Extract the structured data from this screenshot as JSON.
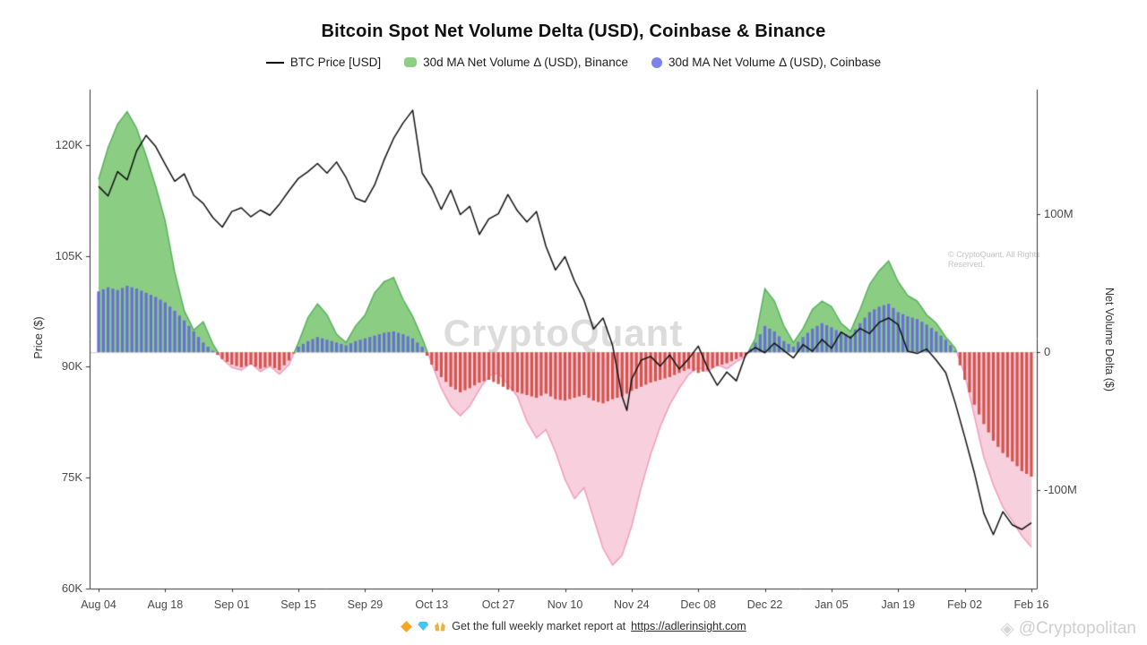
{
  "title": "Bitcoin Spot Net Volume Delta (USD), Coinbase & Binance",
  "legend": {
    "items": [
      {
        "label": "BTC Price [USD]",
        "swatch": "black-line"
      },
      {
        "label": "30d MA Net Volume Δ (USD), Binance",
        "swatch": "green-area"
      },
      {
        "label": "30d MA Net Volume Δ (USD), Coinbase",
        "swatch": "purple-dot"
      }
    ]
  },
  "axes": {
    "left_title": "Price ($)",
    "right_title": "Net Volume Delta ($)"
  },
  "watermarks": {
    "center": "CryptoQuant",
    "small": "© CryptoQuant. All Rights Reserved.",
    "bottom_right": "@Cryptopolitan"
  },
  "footer": {
    "icons": [
      "orange-diamond-icon",
      "gem-icon",
      "raised-hands-icon"
    ],
    "text": "Get the full weekly market report at",
    "link": "https://adlerinsight.com"
  },
  "chart_data": {
    "type": "line",
    "x_unit": "days from Aug 04",
    "x_ticks": [
      {
        "d": 0,
        "label": "Aug 04"
      },
      {
        "d": 14,
        "label": "Aug 18"
      },
      {
        "d": 28,
        "label": "Sep 01"
      },
      {
        "d": 42,
        "label": "Sep 15"
      },
      {
        "d": 56,
        "label": "Sep 29"
      },
      {
        "d": 70,
        "label": "Oct 13"
      },
      {
        "d": 84,
        "label": "Oct 27"
      },
      {
        "d": 98,
        "label": "Nov 10"
      },
      {
        "d": 112,
        "label": "Nov 24"
      },
      {
        "d": 126,
        "label": "Dec 08"
      },
      {
        "d": 140,
        "label": "Dec 22"
      },
      {
        "d": 154,
        "label": "Jan 05"
      },
      {
        "d": 168,
        "label": "Jan 19"
      },
      {
        "d": 182,
        "label": "Feb 02"
      },
      {
        "d": 196,
        "label": "Feb 16"
      }
    ],
    "price_ticks": [
      {
        "v": 120,
        "label": "120K"
      },
      {
        "v": 105,
        "label": "105K"
      },
      {
        "v": 90,
        "label": "90K"
      },
      {
        "v": 75,
        "label": "75K"
      },
      {
        "v": 60,
        "label": "60K"
      }
    ],
    "delta_ticks": [
      {
        "v": 100,
        "label": "100M"
      },
      {
        "v": 0,
        "label": "0"
      },
      {
        "v": -100,
        "label": "-100M"
      }
    ],
    "ylim_price_k": [
      60,
      127.5
    ],
    "ylim_delta_m": [
      -171,
      190
    ],
    "series": [
      {
        "name": "BTC Price [USD]",
        "kind": "line",
        "unit": "K USD"
      },
      {
        "name": "30d MA Net Volume Delta (USD), Binance",
        "kind": "area",
        "unit": "M USD"
      },
      {
        "name": "30d MA Net Volume Delta (USD), Coinbase",
        "kind": "bars",
        "unit": "M USD"
      }
    ],
    "btc_price_k": [
      [
        0,
        114.4
      ],
      [
        2,
        113.1
      ],
      [
        4,
        116.4
      ],
      [
        6,
        115.3
      ],
      [
        8,
        119.2
      ],
      [
        10,
        121.3
      ],
      [
        12,
        119.8
      ],
      [
        14,
        117.4
      ],
      [
        16,
        115.1
      ],
      [
        18,
        116.1
      ],
      [
        20,
        113.2
      ],
      [
        22,
        112.1
      ],
      [
        24,
        110.2
      ],
      [
        26,
        108.9
      ],
      [
        28,
        111.0
      ],
      [
        30,
        111.5
      ],
      [
        32,
        110.3
      ],
      [
        34,
        111.2
      ],
      [
        36,
        110.5
      ],
      [
        38,
        112.0
      ],
      [
        40,
        113.8
      ],
      [
        42,
        115.5
      ],
      [
        44,
        116.4
      ],
      [
        46,
        117.5
      ],
      [
        48,
        116.2
      ],
      [
        50,
        117.7
      ],
      [
        52,
        115.6
      ],
      [
        54,
        112.8
      ],
      [
        56,
        112.3
      ],
      [
        58,
        114.6
      ],
      [
        60,
        118.0
      ],
      [
        62,
        120.9
      ],
      [
        64,
        123.0
      ],
      [
        66,
        124.7
      ],
      [
        68,
        116.2
      ],
      [
        70,
        114.2
      ],
      [
        72,
        111.3
      ],
      [
        74,
        113.9
      ],
      [
        76,
        110.6
      ],
      [
        78,
        111.7
      ],
      [
        80,
        107.9
      ],
      [
        82,
        110.0
      ],
      [
        84,
        110.7
      ],
      [
        86,
        113.3
      ],
      [
        88,
        111.1
      ],
      [
        90,
        109.6
      ],
      [
        92,
        111.0
      ],
      [
        94,
        106.3
      ],
      [
        96,
        103.1
      ],
      [
        98,
        104.9
      ],
      [
        100,
        101.6
      ],
      [
        102,
        99.0
      ],
      [
        104,
        95.1
      ],
      [
        106,
        96.6
      ],
      [
        108,
        92.9
      ],
      [
        110,
        86.0
      ],
      [
        111,
        84.1
      ],
      [
        112,
        88.3
      ],
      [
        114,
        90.9
      ],
      [
        116,
        91.4
      ],
      [
        118,
        90.1
      ],
      [
        120,
        91.6
      ],
      [
        122,
        89.7
      ],
      [
        124,
        91.1
      ],
      [
        126,
        92.8
      ],
      [
        128,
        89.8
      ],
      [
        130,
        87.5
      ],
      [
        132,
        89.3
      ],
      [
        134,
        88.1
      ],
      [
        136,
        91.7
      ],
      [
        138,
        92.6
      ],
      [
        140,
        91.9
      ],
      [
        142,
        93.2
      ],
      [
        144,
        92.2
      ],
      [
        146,
        91.2
      ],
      [
        148,
        93.0
      ],
      [
        150,
        92.1
      ],
      [
        152,
        93.7
      ],
      [
        154,
        92.5
      ],
      [
        156,
        94.7
      ],
      [
        158,
        93.9
      ],
      [
        160,
        95.2
      ],
      [
        162,
        94.5
      ],
      [
        164,
        96.0
      ],
      [
        166,
        96.6
      ],
      [
        168,
        95.7
      ],
      [
        170,
        92.1
      ],
      [
        172,
        91.8
      ],
      [
        174,
        92.4
      ],
      [
        176,
        90.9
      ],
      [
        178,
        89.2
      ],
      [
        180,
        85.1
      ],
      [
        182,
        80.5
      ],
      [
        184,
        75.7
      ],
      [
        186,
        70.2
      ],
      [
        188,
        67.3
      ],
      [
        190,
        70.4
      ],
      [
        192,
        68.6
      ],
      [
        194,
        68.0
      ],
      [
        196,
        68.9
      ]
    ],
    "binance_delta_m": [
      [
        0,
        125
      ],
      [
        2,
        148
      ],
      [
        4,
        165
      ],
      [
        6,
        174
      ],
      [
        8,
        162
      ],
      [
        10,
        142
      ],
      [
        12,
        120
      ],
      [
        14,
        95
      ],
      [
        16,
        58
      ],
      [
        18,
        30
      ],
      [
        20,
        16
      ],
      [
        22,
        22
      ],
      [
        24,
        6
      ],
      [
        26,
        -5
      ],
      [
        28,
        -11
      ],
      [
        30,
        -13
      ],
      [
        32,
        -8
      ],
      [
        34,
        -14
      ],
      [
        36,
        -10
      ],
      [
        38,
        -16
      ],
      [
        40,
        -9
      ],
      [
        42,
        7
      ],
      [
        44,
        25
      ],
      [
        46,
        35
      ],
      [
        48,
        27
      ],
      [
        50,
        13
      ],
      [
        52,
        7
      ],
      [
        54,
        19
      ],
      [
        56,
        27
      ],
      [
        58,
        43
      ],
      [
        60,
        51
      ],
      [
        62,
        54
      ],
      [
        64,
        38
      ],
      [
        66,
        26
      ],
      [
        68,
        10
      ],
      [
        70,
        -8
      ],
      [
        72,
        -26
      ],
      [
        74,
        -39
      ],
      [
        76,
        -46
      ],
      [
        78,
        -39
      ],
      [
        80,
        -27
      ],
      [
        82,
        -17
      ],
      [
        84,
        -15
      ],
      [
        86,
        -23
      ],
      [
        88,
        -32
      ],
      [
        90,
        -50
      ],
      [
        92,
        -62
      ],
      [
        94,
        -56
      ],
      [
        96,
        -72
      ],
      [
        98,
        -92
      ],
      [
        100,
        -106
      ],
      [
        102,
        -98
      ],
      [
        104,
        -120
      ],
      [
        106,
        -142
      ],
      [
        108,
        -154
      ],
      [
        110,
        -147
      ],
      [
        112,
        -126
      ],
      [
        114,
        -98
      ],
      [
        116,
        -74
      ],
      [
        118,
        -54
      ],
      [
        120,
        -38
      ],
      [
        122,
        -26
      ],
      [
        124,
        -16
      ],
      [
        126,
        -11
      ],
      [
        128,
        -14
      ],
      [
        130,
        -9
      ],
      [
        132,
        -12
      ],
      [
        134,
        -7
      ],
      [
        136,
        -3
      ],
      [
        138,
        10
      ],
      [
        140,
        46
      ],
      [
        142,
        37
      ],
      [
        144,
        19
      ],
      [
        146,
        7
      ],
      [
        148,
        17
      ],
      [
        150,
        31
      ],
      [
        152,
        37
      ],
      [
        154,
        33
      ],
      [
        156,
        21
      ],
      [
        158,
        15
      ],
      [
        160,
        31
      ],
      [
        162,
        49
      ],
      [
        164,
        59
      ],
      [
        166,
        66
      ],
      [
        168,
        51
      ],
      [
        170,
        41
      ],
      [
        172,
        37
      ],
      [
        174,
        27
      ],
      [
        176,
        21
      ],
      [
        178,
        11
      ],
      [
        180,
        3
      ],
      [
        182,
        -16
      ],
      [
        184,
        -46
      ],
      [
        186,
        -76
      ],
      [
        188,
        -96
      ],
      [
        190,
        -112
      ],
      [
        192,
        -122
      ],
      [
        194,
        -133
      ],
      [
        196,
        -141
      ]
    ],
    "coinbase_delta_m": [
      [
        0,
        44
      ],
      [
        2,
        47
      ],
      [
        4,
        45
      ],
      [
        6,
        48
      ],
      [
        8,
        46
      ],
      [
        10,
        43
      ],
      [
        12,
        40
      ],
      [
        14,
        36
      ],
      [
        16,
        30
      ],
      [
        18,
        23
      ],
      [
        20,
        15
      ],
      [
        22,
        7
      ],
      [
        24,
        1
      ],
      [
        26,
        -5
      ],
      [
        28,
        -9
      ],
      [
        30,
        -11
      ],
      [
        32,
        -9
      ],
      [
        34,
        -12
      ],
      [
        36,
        -10
      ],
      [
        38,
        -13
      ],
      [
        40,
        -6
      ],
      [
        42,
        4
      ],
      [
        44,
        8
      ],
      [
        46,
        11
      ],
      [
        48,
        9
      ],
      [
        50,
        7
      ],
      [
        52,
        5
      ],
      [
        54,
        8
      ],
      [
        56,
        10
      ],
      [
        58,
        12
      ],
      [
        60,
        14
      ],
      [
        62,
        15
      ],
      [
        64,
        13
      ],
      [
        66,
        10
      ],
      [
        68,
        4
      ],
      [
        70,
        -9
      ],
      [
        72,
        -18
      ],
      [
        74,
        -25
      ],
      [
        76,
        -29
      ],
      [
        78,
        -26
      ],
      [
        80,
        -22
      ],
      [
        82,
        -20
      ],
      [
        84,
        -23
      ],
      [
        86,
        -27
      ],
      [
        88,
        -29
      ],
      [
        90,
        -31
      ],
      [
        92,
        -33
      ],
      [
        94,
        -30
      ],
      [
        96,
        -34
      ],
      [
        98,
        -35
      ],
      [
        100,
        -33
      ],
      [
        102,
        -31
      ],
      [
        104,
        -35
      ],
      [
        106,
        -37
      ],
      [
        108,
        -34
      ],
      [
        110,
        -32
      ],
      [
        112,
        -28
      ],
      [
        114,
        -25
      ],
      [
        116,
        -22
      ],
      [
        118,
        -20
      ],
      [
        120,
        -18
      ],
      [
        122,
        -15
      ],
      [
        124,
        -12
      ],
      [
        126,
        -15
      ],
      [
        128,
        -13
      ],
      [
        130,
        -10
      ],
      [
        132,
        -8
      ],
      [
        134,
        -5
      ],
      [
        136,
        -2
      ],
      [
        138,
        7
      ],
      [
        140,
        19
      ],
      [
        142,
        15
      ],
      [
        144,
        8
      ],
      [
        146,
        4
      ],
      [
        148,
        11
      ],
      [
        150,
        17
      ],
      [
        152,
        21
      ],
      [
        154,
        18
      ],
      [
        156,
        14
      ],
      [
        158,
        12
      ],
      [
        160,
        21
      ],
      [
        162,
        29
      ],
      [
        164,
        33
      ],
      [
        166,
        35
      ],
      [
        168,
        29
      ],
      [
        170,
        26
      ],
      [
        172,
        24
      ],
      [
        174,
        20
      ],
      [
        176,
        15
      ],
      [
        178,
        9
      ],
      [
        180,
        1
      ],
      [
        182,
        -20
      ],
      [
        184,
        -38
      ],
      [
        186,
        -52
      ],
      [
        188,
        -64
      ],
      [
        190,
        -73
      ],
      [
        192,
        -79
      ],
      [
        194,
        -86
      ],
      [
        196,
        -90
      ]
    ],
    "colors": {
      "price": "#111111",
      "binance_pos_fill": "#8ccd84",
      "binance_pos_edge": "#57b25e",
      "binance_neg_fill": "#f8cfdc",
      "binance_neg_edge": "#f29cc0",
      "coinbase_pos": "#6670d6",
      "coinbase_neg": "#d5534c",
      "axis": "#333333",
      "zero_line": "#cccccc"
    },
    "grid": false,
    "legend_position": "top-center"
  }
}
